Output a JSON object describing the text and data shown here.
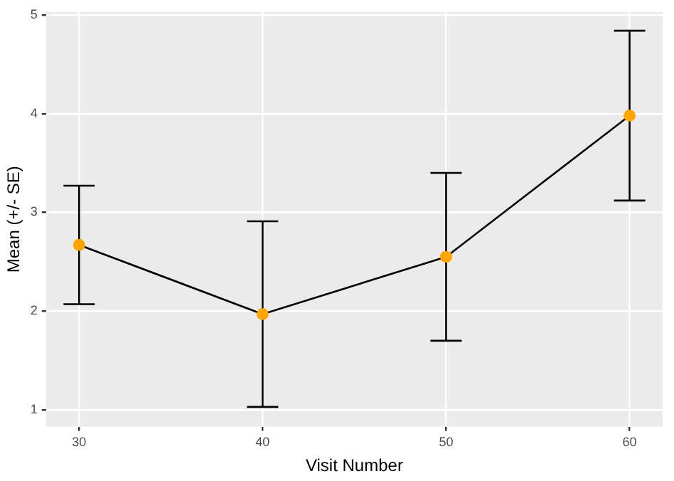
{
  "chart_data": {
    "type": "line",
    "xlabel": "Visit Number",
    "ylabel": "Mean (+/- SE)",
    "x": [
      30,
      40,
      50,
      60
    ],
    "series": [
      {
        "color": "#000000",
        "colors": [
          "#ffa500",
          "#ffa500",
          "#ffa500",
          "#ffa500"
        ],
        "values": [
          2.67,
          1.97,
          2.55,
          3.98
        ],
        "errors": [
          0.6,
          0.94,
          0.85,
          0.86
        ]
      }
    ],
    "xlim": [
      28.2,
      61.8
    ],
    "xticks": [
      30,
      40,
      50,
      60
    ],
    "ylim": [
      0.83,
      5.03
    ],
    "yticks": [
      1,
      2,
      3,
      4,
      5
    ],
    "grid": true,
    "legend": false,
    "marker": "circle",
    "line_style": "solid"
  }
}
